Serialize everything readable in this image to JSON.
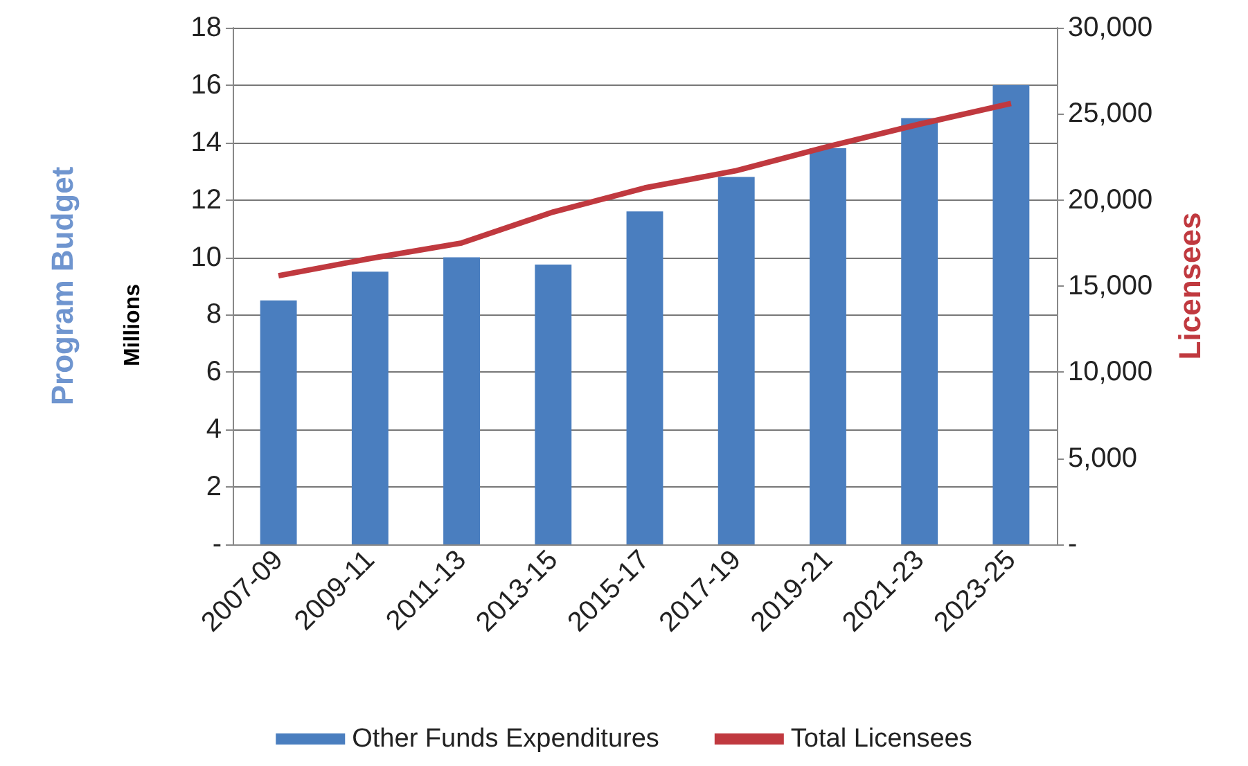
{
  "chart_data": {
    "type": "bar",
    "ylabel": "Program Budget",
    "y2label": "Licensees",
    "annotations": [
      "Millions"
    ],
    "categories": [
      "2007-09",
      "2009-11",
      "2011-13",
      "2013-15",
      "2015-17",
      "2017-19",
      "2019-21",
      "2021-23",
      "2023-25"
    ],
    "series": [
      {
        "name": "Other Funds Expenditures",
        "color": "#4a7ebf",
        "values": [
          8.5,
          9.5,
          10.0,
          9.75,
          11.6,
          12.8,
          13.8,
          14.85,
          16.0
        ]
      },
      {
        "name": "Total Licensees",
        "type": "line",
        "axis": "y2",
        "color": "#c0393f",
        "values": [
          15600,
          16600,
          17500,
          19300,
          20700,
          21700,
          23100,
          24400,
          25600
        ]
      }
    ],
    "ylim": [
      0,
      18
    ],
    "yticks": [
      {
        "value": 0,
        "label": "-"
      },
      2,
      4,
      6,
      8,
      10,
      12,
      14,
      16,
      18
    ],
    "y2lim": [
      0,
      30000
    ],
    "y2ticks": [
      {
        "value": 0,
        "label": "-"
      },
      {
        "value": 5000,
        "label": "5,000"
      },
      {
        "value": 10000,
        "label": "10,000"
      },
      {
        "value": 15000,
        "label": "15,000"
      },
      {
        "value": 20000,
        "label": "20,000"
      },
      {
        "value": 25000,
        "label": "25,000"
      },
      {
        "value": 30000,
        "label": "30,000"
      }
    ],
    "grid": "y",
    "legend": "bottom",
    "marker": "none"
  }
}
